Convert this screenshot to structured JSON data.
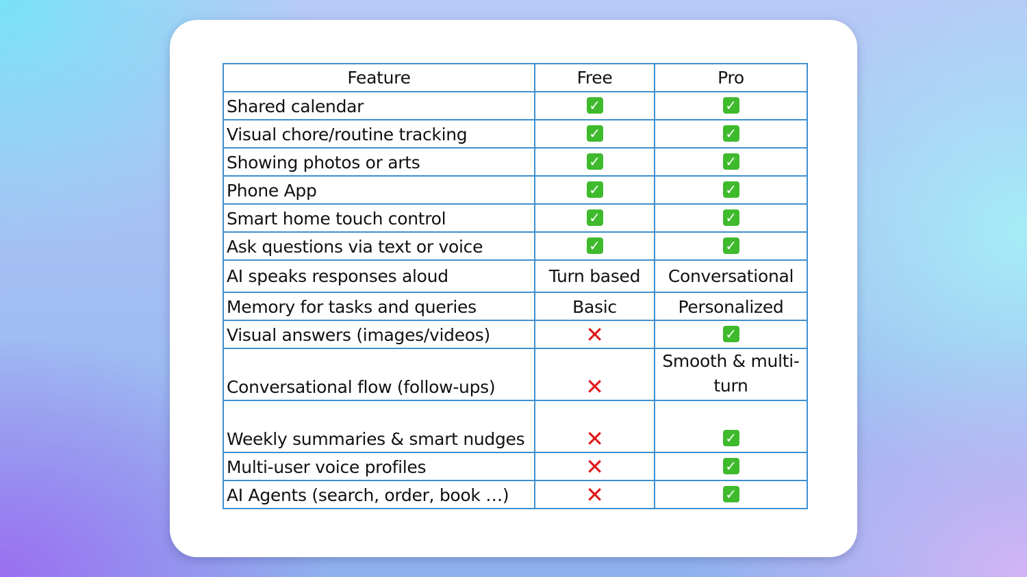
{
  "table": {
    "headers": [
      "Feature",
      "Free",
      "Pro"
    ],
    "rows": [
      {
        "feature": "Shared calendar",
        "free": "check",
        "pro": "check"
      },
      {
        "feature": "Visual chore/routine tracking",
        "free": "check",
        "pro": "check"
      },
      {
        "feature": "Showing photos or arts",
        "free": "check",
        "pro": "check"
      },
      {
        "feature": "Phone App",
        "free": "check",
        "pro": "check"
      },
      {
        "feature": "Smart home touch control",
        "free": "check",
        "pro": "check"
      },
      {
        "feature": "Ask questions via text or voice",
        "free": "check",
        "pro": "check"
      },
      {
        "feature": "AI speaks responses aloud",
        "free": "Turn based",
        "pro": "Conversational"
      },
      {
        "feature": "Memory for tasks and queries",
        "free": "Basic",
        "pro": "Personalized"
      },
      {
        "feature": "Visual answers (images/videos)",
        "free": "cross",
        "pro": "check"
      },
      {
        "feature": "Conversational flow (follow-ups)",
        "free": "cross",
        "pro": "Smooth & multi-turn"
      },
      {
        "feature": "Weekly summaries & smart nudges",
        "free": "cross",
        "pro": "check"
      },
      {
        "feature": "Multi-user voice profiles",
        "free": "cross",
        "pro": "check"
      },
      {
        "feature": "AI Agents (search, order, book …)",
        "free": "cross",
        "pro": "check"
      }
    ]
  },
  "icons": {
    "check": "green-checkmark-icon",
    "cross": "red-cross-icon"
  },
  "colors": {
    "check": "#3fba2d",
    "cross": "#e01818",
    "border": "#3d8fd0"
  }
}
